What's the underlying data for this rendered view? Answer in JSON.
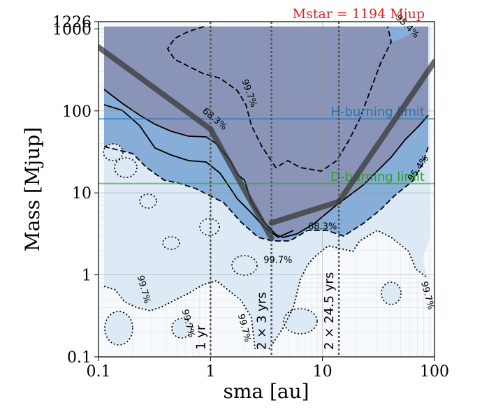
{
  "chart_data": {
    "type": "contour",
    "xlabel": "sma [au]",
    "ylabel": "Mass [Mjup]",
    "xscale": "log",
    "yscale": "log",
    "xlim": [
      0.1,
      100
    ],
    "ylim": [
      0.1,
      1226
    ],
    "x_ticks": [
      {
        "value": 0.1,
        "label": "0.1"
      },
      {
        "value": 1,
        "label": "1"
      },
      {
        "value": 10,
        "label": "10"
      },
      {
        "value": 100,
        "label": "100"
      }
    ],
    "y_ticks": [
      {
        "value": 0.1,
        "label": "0.1"
      },
      {
        "value": 1,
        "label": "1"
      },
      {
        "value": 10,
        "label": "10"
      },
      {
        "value": 100,
        "label": "100"
      },
      {
        "value": 1000,
        "label": "1000"
      },
      {
        "value": 1226,
        "label": "1226"
      }
    ],
    "stellar_mass_label": "Mstar = 1194 Mjup",
    "stellar_mass_color": "#d62728",
    "limits": [
      {
        "name": "H-burning limit",
        "mass": 80,
        "color": "#1f77b4"
      },
      {
        "name": "D-burning limit",
        "mass": 13,
        "color": "#2ca02c"
      }
    ],
    "period_lines": [
      {
        "sma": 1.0,
        "label": "1 yr"
      },
      {
        "sma": 3.5,
        "label": "2 × 3 yrs"
      },
      {
        "sma": 14,
        "label": "2 × 24.5 yrs"
      }
    ],
    "contour_levels": [
      "68.3%",
      "95.4%",
      "99.7%"
    ],
    "contour_labels": [
      {
        "text": "68.3%",
        "sma": 1.05,
        "mass": 75,
        "angle": 40
      },
      {
        "text": "68.3%",
        "sma": 10,
        "mass": 3.6,
        "angle": 0
      },
      {
        "text": "95.4%",
        "sma": 55,
        "mass": 1020,
        "angle": 45
      },
      {
        "text": "95.4%",
        "sma": 75,
        "mass": 19,
        "angle": -55
      },
      {
        "text": "99.7%",
        "sma": 2.1,
        "mass": 160,
        "angle": 70
      },
      {
        "text": "99.7%",
        "sma": 4,
        "mass": 1.4,
        "angle": 0
      },
      {
        "text": "99.7%",
        "sma": 0.24,
        "mass": 0.65,
        "angle": 75
      },
      {
        "text": "99.7%",
        "sma": 0.6,
        "mass": 0.25,
        "angle": 75
      },
      {
        "text": "99.7%",
        "sma": 1.9,
        "mass": 0.22,
        "angle": 75
      },
      {
        "text": "99.7%",
        "sma": 82,
        "mass": 0.55,
        "angle": 75
      }
    ],
    "sensitivity_curve": [
      {
        "sma": 0.1,
        "mass": 600
      },
      {
        "sma": 1.0,
        "mass": 60
      },
      {
        "sma": 3.5,
        "mass": 2.8
      },
      {
        "sma": 3.5,
        "mass": 4.3
      },
      {
        "sma": 14,
        "mass": 7.8
      },
      {
        "sma": 100,
        "mass": 400
      }
    ],
    "colors": {
      "c68": "#8a94b8",
      "c95": "#86aed8",
      "c99": "#dde9f5",
      "bg": "#f7fafd",
      "grid": "#c8d2de",
      "curve": "#3a3a3a"
    }
  }
}
